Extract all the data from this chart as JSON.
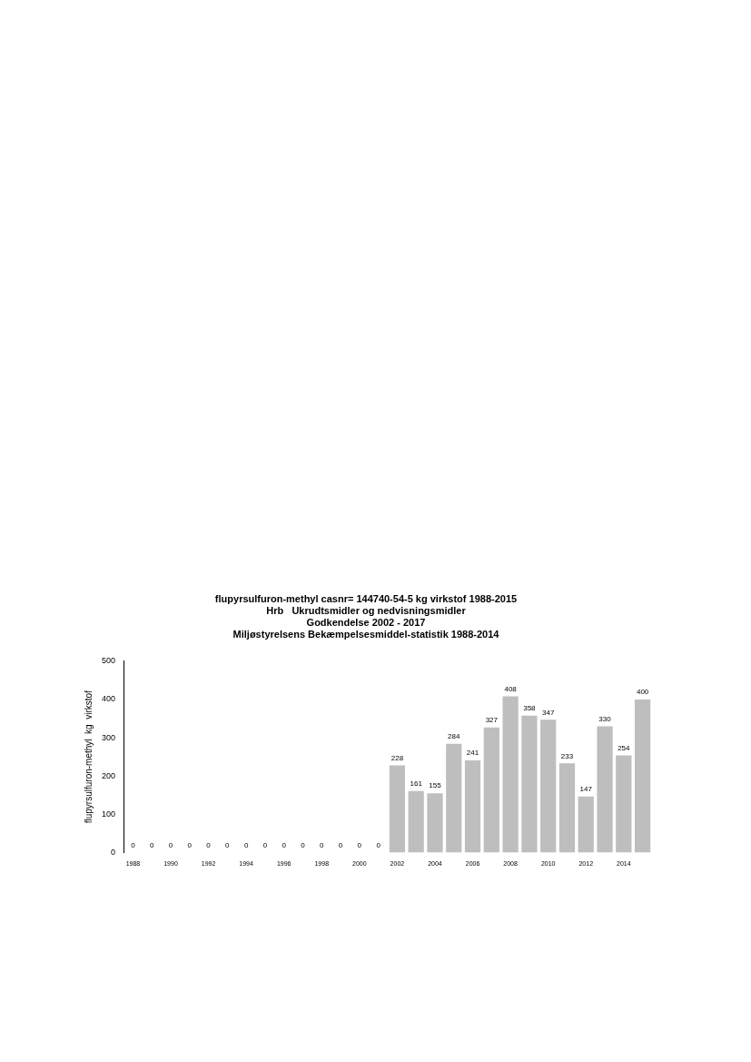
{
  "chart_data": {
    "type": "bar",
    "title": "flupyrsulfuron-methyl casnr= 144740-54-5 kg virkstof 1988-2015\nHrb   Ukrudtsmidler og nedvisningsmidler\nGodkendelse 2002 - 2017\nMiljøstyrelsens Bekæmpelsesmiddel-statistik 1988-2014",
    "ylabel": "flupyrsulfuron-methyl  kg  virkstof",
    "categories": [
      "1988",
      null,
      "1990",
      null,
      "1992",
      null,
      "1994",
      null,
      "1996",
      null,
      "1998",
      null,
      "2000",
      null,
      "2002",
      null,
      "2004",
      null,
      "2006",
      null,
      "2008",
      null,
      "2010",
      null,
      "2012",
      null,
      "2014",
      null
    ],
    "values": [
      0,
      0,
      0,
      0,
      0,
      0,
      0,
      0,
      0,
      0,
      0,
      0,
      0,
      0,
      228,
      161,
      155,
      284,
      241,
      327,
      408,
      358,
      347,
      233,
      147,
      330,
      254,
      400
    ],
    "color": "#bebebe",
    "ylim": [
      0,
      500
    ],
    "yticks": [
      0,
      100,
      200,
      300,
      400,
      500
    ],
    "grid": false,
    "legend": false,
    "data_labels": true
  }
}
